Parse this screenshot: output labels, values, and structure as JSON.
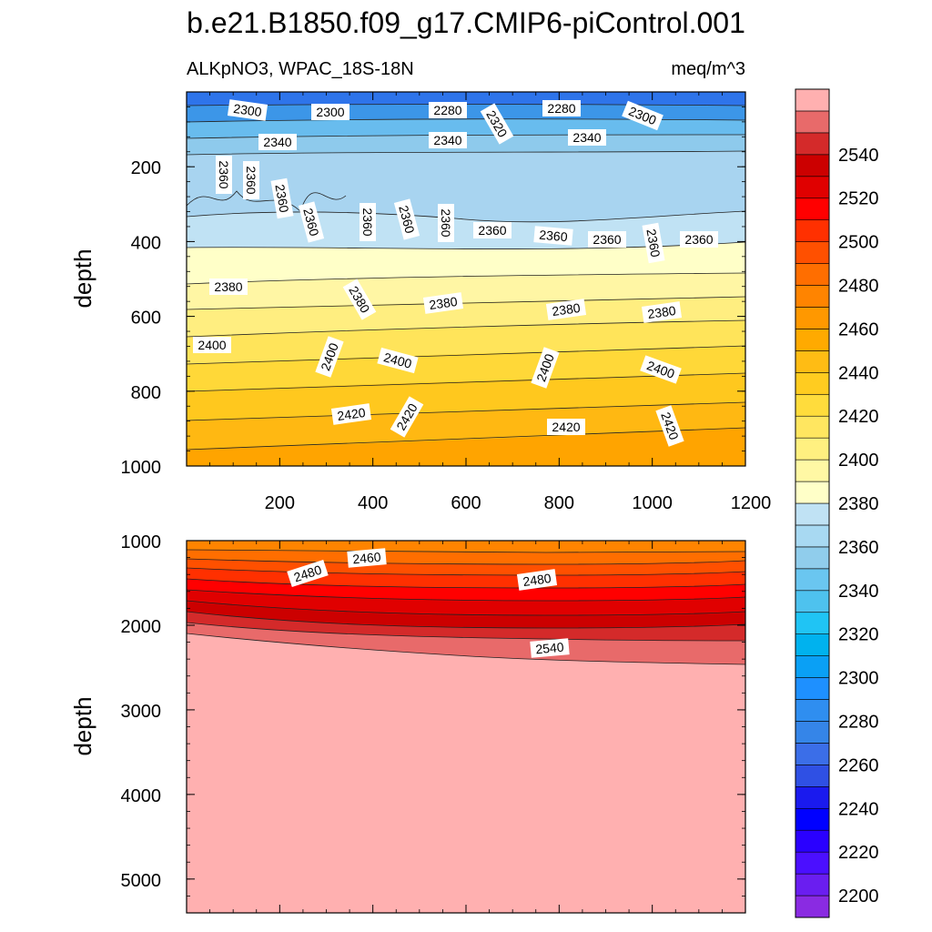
{
  "chart_data": {
    "type": "contour",
    "title": "b.e21.B1850.f09_g17.CMIP6-piControl.001",
    "variable_label": "ALKpNO3, WPAC_18S-18N",
    "units_label": "meq/m^3",
    "colorbar": {
      "levels": [
        2200,
        2210,
        2220,
        2230,
        2240,
        2250,
        2260,
        2270,
        2280,
        2290,
        2300,
        2310,
        2320,
        2330,
        2340,
        2350,
        2360,
        2370,
        2380,
        2390,
        2400,
        2410,
        2420,
        2430,
        2440,
        2450,
        2460,
        2470,
        2480,
        2490,
        2500,
        2510,
        2520,
        2530,
        2540,
        2550
      ],
      "tick_labels": [
        "2200",
        "2220",
        "2240",
        "2260",
        "2280",
        "2300",
        "2320",
        "2340",
        "2360",
        "2380",
        "2400",
        "2420",
        "2440",
        "2460",
        "2480",
        "2500",
        "2520",
        "2540"
      ],
      "colors": [
        "#8a2be2",
        "#6a1ef0",
        "#4b0fff",
        "#2a00ff",
        "#0000ff",
        "#1a1aee",
        "#2f50e4",
        "#3b6ee8",
        "#3585e8",
        "#2f8ef0",
        "#1e90ff",
        "#0aa0f5",
        "#00b2ee",
        "#20c4f4",
        "#4ec2ee",
        "#6ac6f0",
        "#90cdec",
        "#a8d9f2",
        "#c0e2f4",
        "#ffffc8",
        "#fff8a4",
        "#fff080",
        "#ffe660",
        "#ffdc3c",
        "#ffcc20",
        "#ffbc14",
        "#ffaa00",
        "#ff9800",
        "#ff8400",
        "#ff6e00",
        "#ff5000",
        "#ff3000",
        "#ff0000",
        "#e00000",
        "#cc0000",
        "#d42a2a",
        "#e86a6a",
        "#ffb0b0"
      ]
    },
    "upper_panel": {
      "ylabel": "depth",
      "ylim": [
        1000,
        0
      ],
      "xlim": [
        0,
        1200
      ],
      "y_ticks": [
        200,
        400,
        600,
        800,
        1000
      ],
      "x_ticks": [
        200,
        400,
        600,
        800,
        1000,
        1200
      ],
      "contour_labels": [
        "2300",
        "2300",
        "2280",
        "2320",
        "2280",
        "2300",
        "2340",
        "2340",
        "2340",
        "2360",
        "2360",
        "2360",
        "2360",
        "2360",
        "2360",
        "2360",
        "2360",
        "2360",
        "2360",
        "2360",
        "2360",
        "2380",
        "2380",
        "2380",
        "2380",
        "2380",
        "2400",
        "2400",
        "2400",
        "2400",
        "2400",
        "2420",
        "2420",
        "2420",
        "2420"
      ]
    },
    "lower_panel": {
      "ylabel": "depth",
      "ylim": [
        5400,
        1000
      ],
      "xlim": [
        0,
        1200
      ],
      "y_ticks": [
        1000,
        2000,
        3000,
        4000,
        5000
      ],
      "contour_labels": [
        "2480",
        "2460",
        "2480",
        "2540"
      ]
    }
  }
}
